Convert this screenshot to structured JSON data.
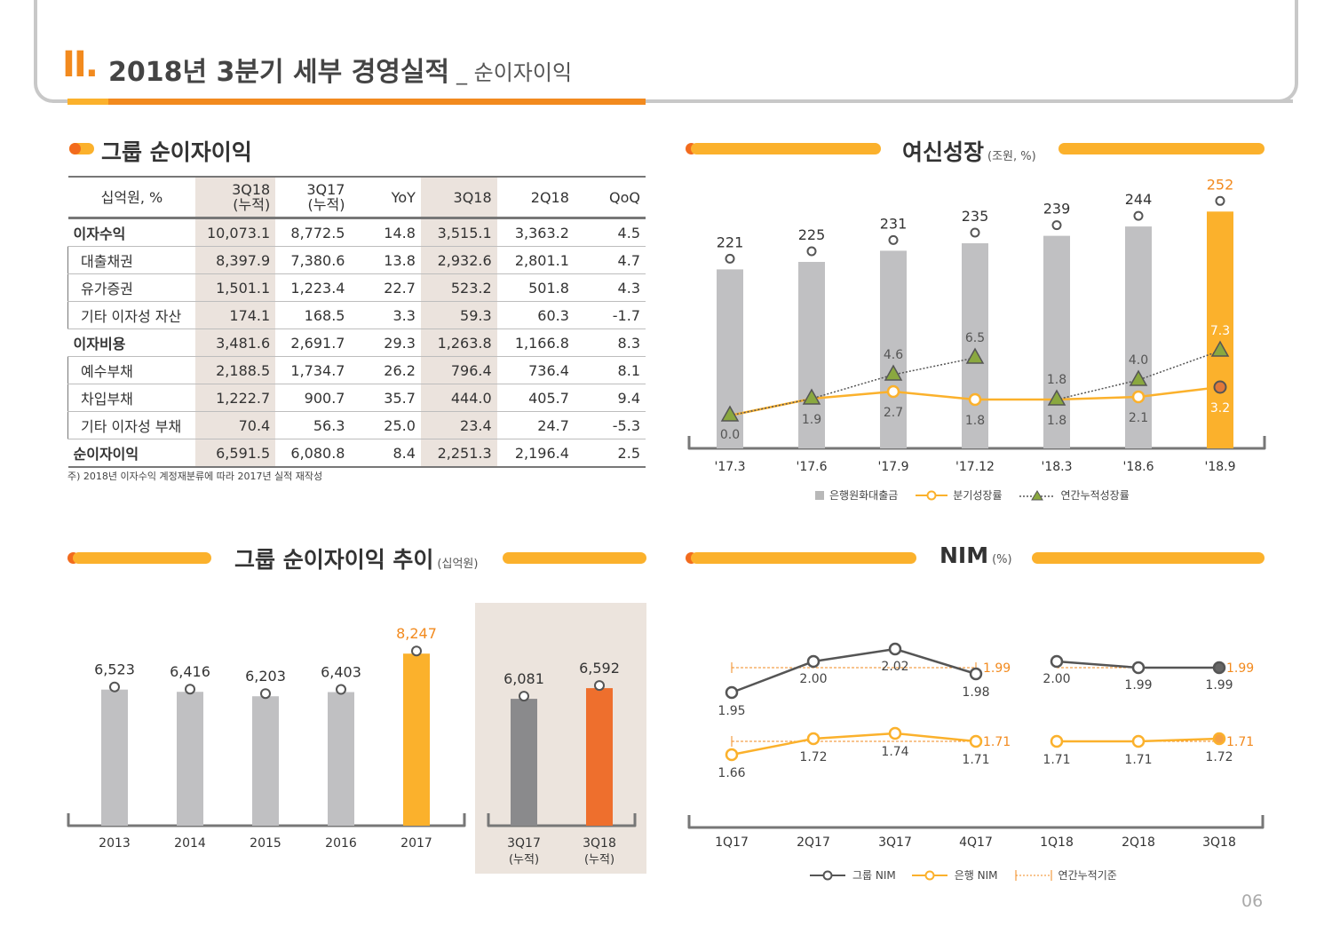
{
  "header": {
    "roman": "II.",
    "title": "2018년 3분기 세부 경영실적",
    "subtitle": "_ 순이자이익"
  },
  "table_section": {
    "title": "그룹 순이자이익",
    "columns": [
      "십억원, %",
      "3Q18\n(누적)",
      "3Q17\n(누적)",
      "YoY",
      "3Q18",
      "2Q18",
      "QoQ"
    ],
    "rows": [
      {
        "kind": "main",
        "cells": [
          "이자수익",
          "10,073.1",
          "8,772.5",
          "14.8",
          "3,515.1",
          "3,363.2",
          "4.5"
        ]
      },
      {
        "kind": "sub",
        "cells": [
          "대출채권",
          "8,397.9",
          "7,380.6",
          "13.8",
          "2,932.6",
          "2,801.1",
          "4.7"
        ]
      },
      {
        "kind": "sub",
        "cells": [
          "유가증권",
          "1,501.1",
          "1,223.4",
          "22.7",
          "523.2",
          "501.8",
          "4.3"
        ]
      },
      {
        "kind": "sub",
        "cells": [
          "기타 이자성 자산",
          "174.1",
          "168.5",
          "3.3",
          "59.3",
          "60.3",
          "-1.7"
        ]
      },
      {
        "kind": "main",
        "cells": [
          "이자비용",
          "3,481.6",
          "2,691.7",
          "29.3",
          "1,263.8",
          "1,166.8",
          "8.3"
        ]
      },
      {
        "kind": "sub",
        "cells": [
          "예수부채",
          "2,188.5",
          "1,734.7",
          "26.2",
          "796.4",
          "736.4",
          "8.1"
        ]
      },
      {
        "kind": "sub",
        "cells": [
          "차입부채",
          "1,222.7",
          "900.7",
          "35.7",
          "444.0",
          "405.7",
          "9.4"
        ]
      },
      {
        "kind": "sub",
        "cells": [
          "기타 이자성 부채",
          "70.4",
          "56.3",
          "25.0",
          "23.4",
          "24.7",
          "-5.3"
        ]
      },
      {
        "kind": "main",
        "cells": [
          "순이자이익",
          "6,591.5",
          "6,080.8",
          "8.4",
          "2,251.3",
          "2,196.4",
          "2.5"
        ]
      }
    ],
    "note": "주) 2018년 이자수익 계정재분류에 따라 2017년 실적 재작성"
  },
  "chart_data": [
    {
      "type": "bar+line",
      "title": "여신성장",
      "unit": "(조원, %)",
      "categories": [
        "'17.3",
        "'17.6",
        "'17.9",
        "'17.12",
        "'18.3",
        "'18.6",
        "'18.9"
      ],
      "series": [
        {
          "name": "은행원화대출금",
          "type": "bar",
          "values": [
            221,
            225,
            231,
            235,
            239,
            244,
            252
          ]
        },
        {
          "name": "분기성장률",
          "type": "line",
          "values": [
            null,
            1.9,
            2.7,
            1.8,
            1.8,
            2.1,
            3.2
          ]
        },
        {
          "name": "연간누적성장률",
          "type": "line",
          "values": [
            0.0,
            1.9,
            4.6,
            6.5,
            1.8,
            4.0,
            7.3
          ]
        }
      ],
      "colors": {
        "bar": "#c0c0c2",
        "highlight": "#fbb12c",
        "quarter": "#fbb12c",
        "annual": "#555555",
        "annual_marker": "#8aa83f",
        "last_marker": "#e0783a"
      }
    },
    {
      "type": "bar",
      "title": "그룹 순이자이익 추이",
      "unit": "(십억원)",
      "categories": [
        "2013",
        "2014",
        "2015",
        "2016",
        "2017"
      ],
      "values": [
        6523,
        6416,
        6203,
        6403,
        8247
      ],
      "labels": [
        "6,523",
        "6,416",
        "6,203",
        "6,403",
        "8,247"
      ],
      "ylim": [
        0,
        9000
      ],
      "panel": {
        "categories": [
          "3Q17\n(누적)",
          "3Q18\n(누적)"
        ],
        "values": [
          6081,
          6592
        ],
        "labels": [
          "6,081",
          "6,592"
        ]
      },
      "colors": {
        "bar": "#c0c0c2",
        "highlight": "#fbb12c",
        "panel_a": "#8a8a8c",
        "panel_b": "#ee6f2d",
        "panel_bg": "#ece4dd"
      }
    },
    {
      "type": "line",
      "title": "NIM",
      "unit": "(%)",
      "categories": [
        "1Q17",
        "2Q17",
        "3Q17",
        "4Q17",
        "1Q18",
        "2Q18",
        "3Q18"
      ],
      "series": [
        {
          "name": "그룹 NIM",
          "values": [
            1.95,
            2.0,
            2.02,
            1.98,
            2.0,
            1.99,
            1.99
          ],
          "labels": [
            "1.95",
            "2.00",
            "2.02",
            "1.98",
            "2.00",
            "1.99",
            "1.99"
          ],
          "cumulative": [
            "1.99",
            "1.99"
          ]
        },
        {
          "name": "은행 NIM",
          "values": [
            1.66,
            1.72,
            1.74,
            1.71,
            1.71,
            1.71,
            1.72
          ],
          "labels": [
            "1.66",
            "1.72",
            "1.74",
            "1.71",
            "1.71",
            "1.71",
            "1.72"
          ],
          "cumulative": [
            "1.71",
            "1.71"
          ]
        }
      ],
      "legend": [
        "그룹 NIM",
        "은행 NIM",
        "연간누적기준"
      ],
      "colors": {
        "group": "#555555",
        "bank": "#fbb12c",
        "cum_group": "#f28a1e",
        "cum_bank": "#f28a1e"
      }
    }
  ],
  "page_number": "06"
}
